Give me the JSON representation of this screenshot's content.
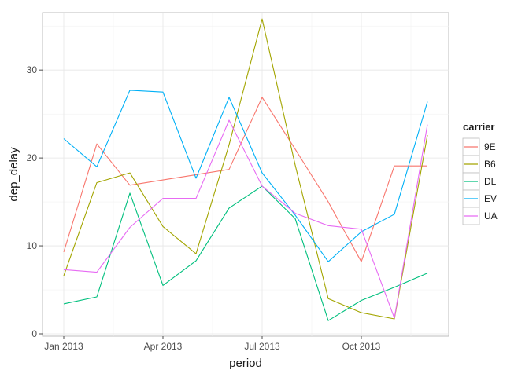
{
  "chart_data": {
    "type": "line",
    "title": "",
    "xlabel": "period",
    "ylabel": "dep_delay",
    "x": [
      "2013-01",
      "2013-02",
      "2013-03",
      "2013-04",
      "2013-05",
      "2013-06",
      "2013-07",
      "2013-08",
      "2013-09",
      "2013-10",
      "2013-11",
      "2013-12"
    ],
    "x_ticks": [
      {
        "x": "2013-01",
        "label": "Jan 2013"
      },
      {
        "x": "2013-04",
        "label": "Apr 2013"
      },
      {
        "x": "2013-07",
        "label": "Jul 2013"
      },
      {
        "x": "2013-10",
        "label": "Oct 2013"
      }
    ],
    "y_ticks": [
      0,
      10,
      20,
      30
    ],
    "ylim": [
      0,
      36
    ],
    "grid": true,
    "legend": {
      "title": "carrier",
      "position": "right"
    },
    "series": [
      {
        "name": "9E",
        "color": "#F8766D",
        "values": [
          9.3,
          21.6,
          16.9,
          17.5,
          18.1,
          18.7,
          26.9,
          21.0,
          15.0,
          8.2,
          19.1,
          19.1
        ]
      },
      {
        "name": "B6",
        "color": "#A3A500",
        "values": [
          6.6,
          17.2,
          18.3,
          12.2,
          9.1,
          21.5,
          35.8,
          19.2,
          4.0,
          2.4,
          1.7,
          22.6
        ]
      },
      {
        "name": "DL",
        "color": "#00BF7D",
        "values": [
          3.4,
          4.2,
          16.0,
          5.5,
          8.3,
          14.3,
          16.8,
          13.1,
          1.5,
          3.8,
          5.3,
          6.9
        ]
      },
      {
        "name": "EV",
        "color": "#00B0F6",
        "values": [
          22.2,
          19.0,
          27.7,
          27.5,
          17.7,
          26.9,
          18.3,
          13.5,
          8.2,
          11.6,
          13.6,
          26.4
        ]
      },
      {
        "name": "UA",
        "color": "#E76BF3",
        "values": [
          7.3,
          7.0,
          12.1,
          15.4,
          15.4,
          24.3,
          16.8,
          13.7,
          12.3,
          11.9,
          1.8,
          23.8
        ]
      }
    ]
  }
}
